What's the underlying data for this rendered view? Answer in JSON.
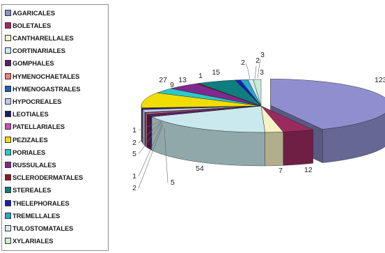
{
  "chart_data": {
    "type": "pie",
    "style": "3d-exploded-pie",
    "legend_position": "left",
    "categories": [
      "AGARICALES",
      "BOLETALES",
      "CANTHARELLALES",
      "CORTINARIALES",
      "GOMPHALES",
      "HYMENOCHAETALES",
      "HYMENOGASTRALES",
      "HYPOCREALES",
      "LEOTIALES",
      "PATELLARIALES",
      "PEZIZALES",
      "PORIALES",
      "RUSSULALES",
      "SCLERODERMATALES",
      "STEREALES",
      "THELEPHORALES",
      "TREMELLALES",
      "TULOSTOMATALES",
      "XYLARIALES"
    ],
    "values": [
      123,
      12,
      7,
      54,
      5,
      2,
      1,
      5,
      2,
      1,
      27,
      9,
      13,
      1,
      15,
      2,
      3,
      2,
      3
    ],
    "colors": [
      "#8f8fd0",
      "#9b2b5e",
      "#f7f2c4",
      "#c9e9ee",
      "#5c1f68",
      "#f37f77",
      "#1565b1",
      "#c3c4ec",
      "#1a1f64",
      "#c850b6",
      "#f2dd00",
      "#2cc9cb",
      "#7f2a8e",
      "#8c1c21",
      "#0e7e80",
      "#1c1cb0",
      "#2aa7cc",
      "#d5ebef",
      "#c7ecd8"
    ]
  }
}
